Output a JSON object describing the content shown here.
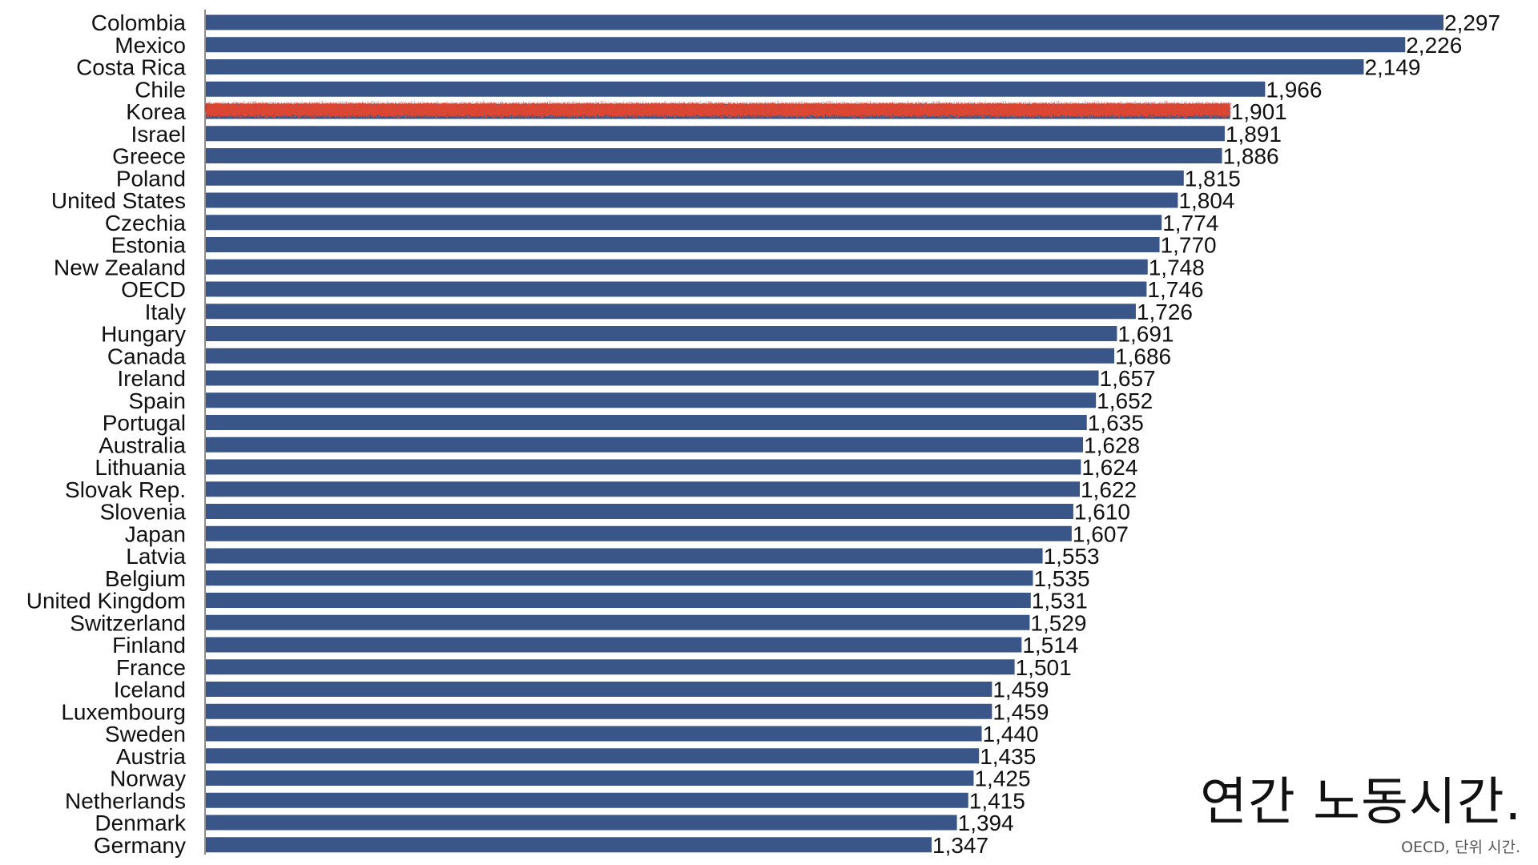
{
  "chart_data": {
    "type": "bar",
    "orientation": "horizontal",
    "title": "연간 노동시간.",
    "subtitle": "OECD, 단위 시간.",
    "xlabel": "",
    "ylabel": "",
    "xlim": [
      0,
      2297
    ],
    "grid": false,
    "legend": "none",
    "bar_color": "#3a5689",
    "highlight_color": "#e8452c",
    "highlight_category": "Korea",
    "categories": [
      "Colombia",
      "Mexico",
      "Costa Rica",
      "Chile",
      "Korea",
      "Israel",
      "Greece",
      "Poland",
      "United States",
      "Czechia",
      "Estonia",
      "New Zealand",
      "OECD",
      "Italy",
      "Hungary",
      "Canada",
      "Ireland",
      "Spain",
      "Portugal",
      "Australia",
      "Lithuania",
      "Slovak Rep.",
      "Slovenia",
      "Japan",
      "Latvia",
      "Belgium",
      "United Kingdom",
      "Switzerland",
      "Finland",
      "France",
      "Iceland",
      "Luxembourg",
      "Sweden",
      "Austria",
      "Norway",
      "Netherlands",
      "Denmark",
      "Germany"
    ],
    "values": [
      2297,
      2226,
      2149,
      1966,
      1901,
      1891,
      1886,
      1815,
      1804,
      1774,
      1770,
      1748,
      1746,
      1726,
      1691,
      1686,
      1657,
      1652,
      1635,
      1628,
      1624,
      1622,
      1610,
      1607,
      1553,
      1535,
      1531,
      1529,
      1514,
      1501,
      1459,
      1459,
      1440,
      1435,
      1425,
      1415,
      1394,
      1347
    ],
    "value_labels": [
      "2,297",
      "2,226",
      "2,149",
      "1,966",
      "1,901",
      "1,891",
      "1,886",
      "1,815",
      "1,804",
      "1,774",
      "1,770",
      "1,748",
      "1,746",
      "1,726",
      "1,691",
      "1,686",
      "1,657",
      "1,652",
      "1,635",
      "1,628",
      "1,624",
      "1,622",
      "1,610",
      "1,607",
      "1,553",
      "1,535",
      "1,531",
      "1,529",
      "1,514",
      "1,501",
      "1,459",
      "1,459",
      "1,440",
      "1,435",
      "1,425",
      "1,415",
      "1,394",
      "1,347"
    ]
  }
}
